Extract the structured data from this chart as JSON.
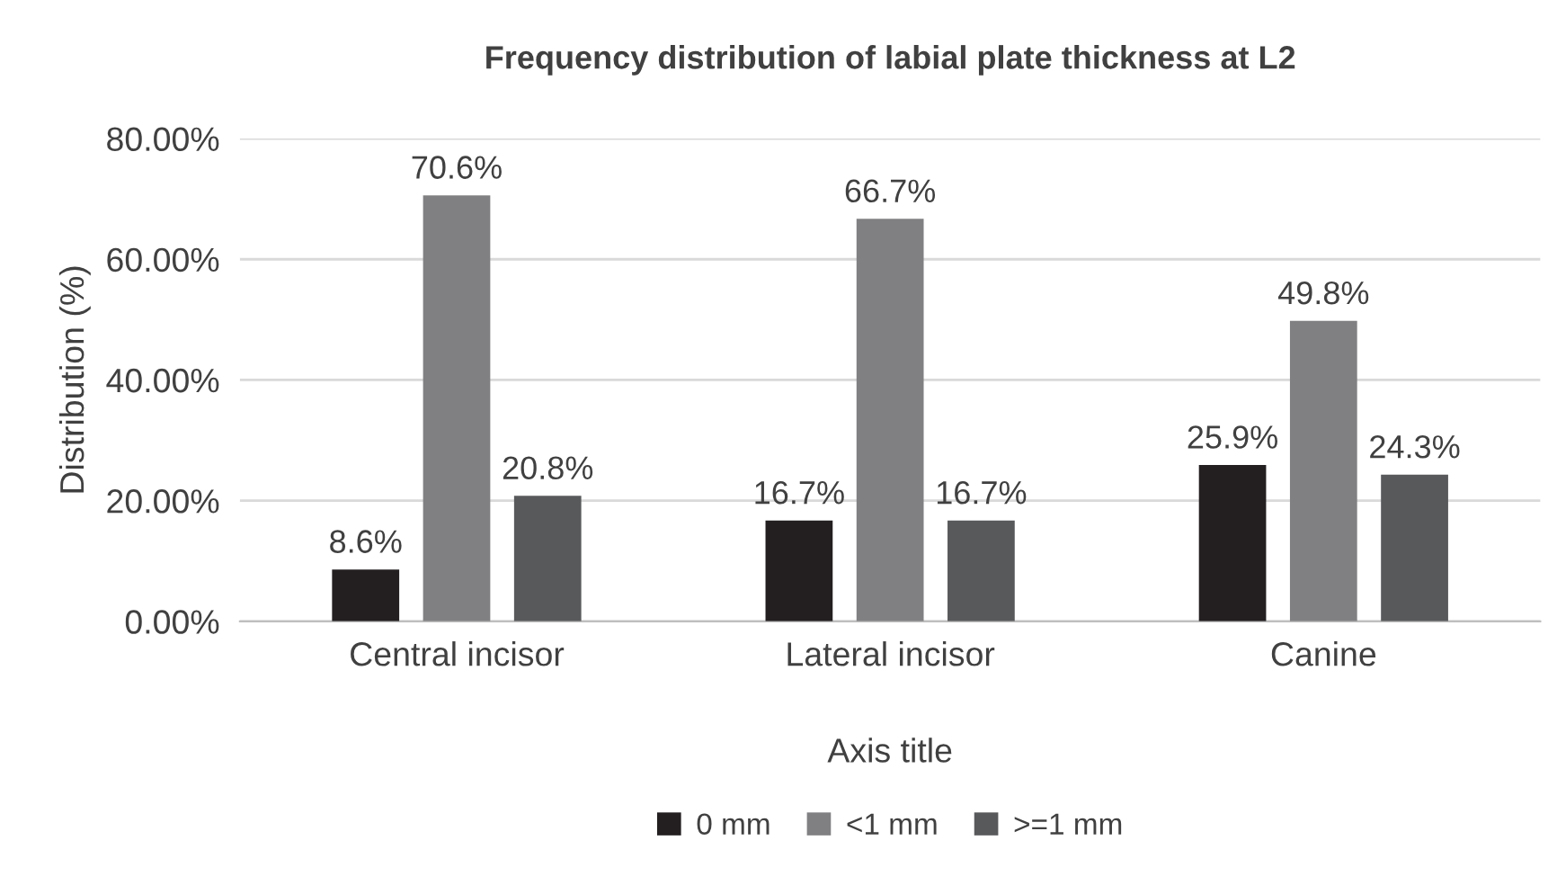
{
  "chart_data": {
    "type": "bar",
    "title": "Frequency distribution of labial plate thickness at L2",
    "xlabel": "Axis title",
    "ylabel": "Distribution (%)",
    "categories": [
      "Central incisor",
      "Lateral incisor",
      "Canine"
    ],
    "series": [
      {
        "name": "0 mm",
        "color": "#231f20",
        "values": [
          8.6,
          16.7,
          25.9
        ],
        "value_labels": [
          "8.6%",
          "16.7%",
          "25.9%"
        ]
      },
      {
        "name": "<1 mm",
        "color": "#808083",
        "values": [
          70.6,
          66.7,
          49.8
        ],
        "value_labels": [
          "70.6%",
          "66.7%",
          "49.8%"
        ]
      },
      {
        "name": ">=1 mm",
        "color": "#58595b",
        "values": [
          20.8,
          16.7,
          24.3
        ],
        "value_labels": [
          "20.8%",
          "16.7%",
          "24.3%"
        ]
      }
    ],
    "ylim": [
      0,
      80
    ],
    "yticks": [
      {
        "value": 0,
        "label": "0.00%"
      },
      {
        "value": 20,
        "label": "20.00%"
      },
      {
        "value": 40,
        "label": "40.00%"
      },
      {
        "value": 60,
        "label": "60.00%"
      },
      {
        "value": 80,
        "label": "80.00%"
      }
    ],
    "grid": "y",
    "legend": "bottom"
  }
}
